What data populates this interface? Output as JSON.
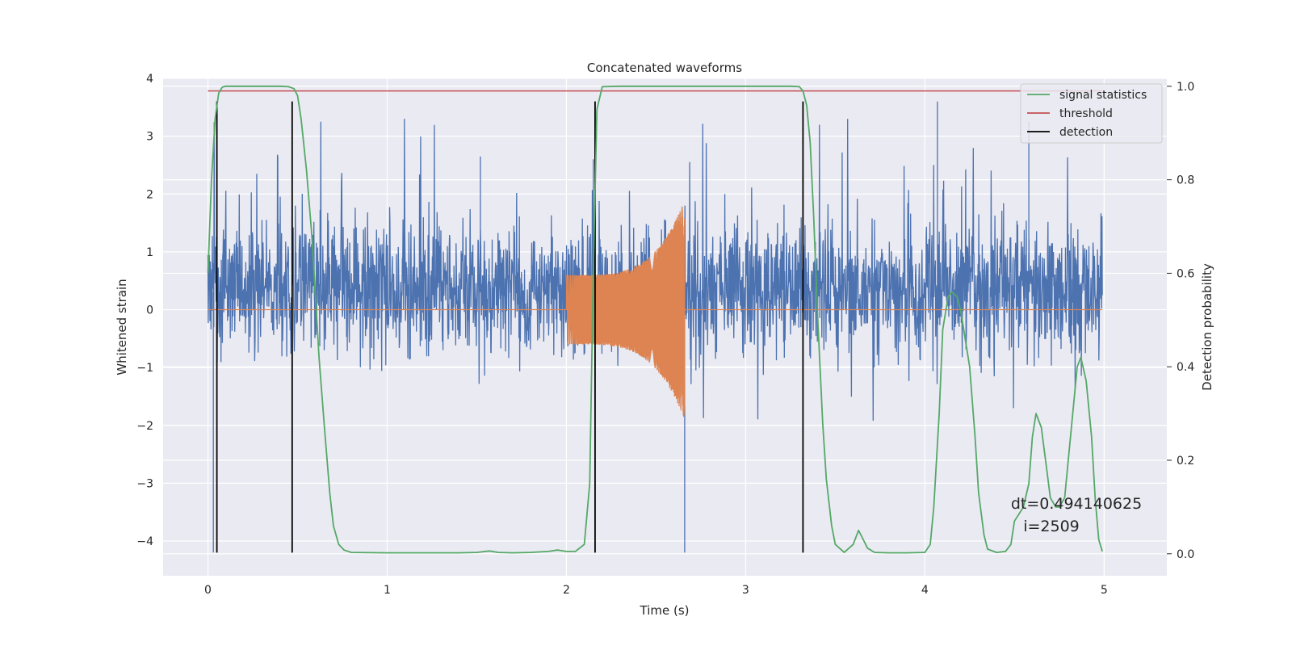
{
  "chart_data": {
    "type": "line",
    "title": "Concatenated waveforms",
    "xlabel": "Time (s)",
    "ylabel": "Whitened strain",
    "y2label": "Detection probability",
    "xlim": [
      -0.25,
      5.35
    ],
    "ylim": [
      -4.6,
      4.0
    ],
    "y2lim": [
      -0.047,
      1.017
    ],
    "x_ticks": [
      0,
      1,
      2,
      3,
      4,
      5
    ],
    "y_ticks": [
      4,
      3,
      2,
      1,
      0,
      -1,
      -2,
      -3,
      -4
    ],
    "y_tick_labels": [
      "4",
      "3",
      "2",
      "1",
      "0",
      "−1",
      "−2",
      "−3",
      "−4"
    ],
    "y2_ticks": [
      1.0,
      0.8,
      0.6,
      0.4,
      0.2,
      0.0
    ],
    "y2_tick_labels": [
      "1.0",
      "0.8",
      "0.6",
      "0.4",
      "0.2",
      "0.0"
    ],
    "grid": true,
    "legend_position": "top-right",
    "legend": [
      "signal statistics",
      "threshold",
      "detection"
    ],
    "colors": {
      "noise": "#4c72b0",
      "injection": "#dd8452",
      "signal_statistics": "#55a868",
      "threshold": "#c44e52",
      "detection": "#000000",
      "background": "#eaeaf2",
      "grid": "#ffffff"
    },
    "noise": {
      "x_range": [
        0.0,
        4.99
      ],
      "typical_range": [
        -1.0,
        1.7
      ],
      "max_peak": 3.6,
      "min_peak": -4.2
    },
    "injection": {
      "x_range": [
        2.0,
        2.66
      ],
      "start_amplitude": 0.6,
      "peak_amplitude": 1.9,
      "min_amplitude": -2.2
    },
    "series": [
      {
        "name": "signal statistics",
        "axis": "right",
        "x": [
          0.0,
          0.02,
          0.04,
          0.06,
          0.08,
          0.1,
          0.2,
          0.3,
          0.4,
          0.45,
          0.48,
          0.5,
          0.52,
          0.55,
          0.58,
          0.6,
          0.62,
          0.65,
          0.68,
          0.7,
          0.73,
          0.76,
          0.8,
          1.0,
          1.2,
          1.4,
          1.5,
          1.57,
          1.62,
          1.7,
          1.8,
          1.9,
          1.95,
          2.0,
          2.05,
          2.1,
          2.13,
          2.15,
          2.17,
          2.2,
          2.3,
          2.5,
          3.0,
          3.25,
          3.3,
          3.32,
          3.34,
          3.36,
          3.38,
          3.4,
          3.43,
          3.45,
          3.48,
          3.5,
          3.55,
          3.6,
          3.63,
          3.65,
          3.68,
          3.72,
          3.8,
          3.9,
          4.0,
          4.03,
          4.05,
          4.08,
          4.1,
          4.13,
          4.15,
          4.18,
          4.2,
          4.25,
          4.28,
          4.3,
          4.33,
          4.35,
          4.4,
          4.45,
          4.48,
          4.5,
          4.55,
          4.58,
          4.6,
          4.62,
          4.65,
          4.68,
          4.7,
          4.73,
          4.75,
          4.78,
          4.8,
          4.83,
          4.85,
          4.87,
          4.9,
          4.93,
          4.95,
          4.97,
          4.99
        ],
        "y": [
          0.6,
          0.8,
          0.93,
          0.985,
          0.998,
          1.0,
          1.0,
          1.0,
          1.0,
          0.999,
          0.995,
          0.98,
          0.93,
          0.82,
          0.68,
          0.55,
          0.42,
          0.27,
          0.13,
          0.06,
          0.02,
          0.008,
          0.003,
          0.002,
          0.002,
          0.002,
          0.003,
          0.006,
          0.003,
          0.002,
          0.003,
          0.005,
          0.008,
          0.005,
          0.005,
          0.02,
          0.15,
          0.6,
          0.95,
          0.999,
          1.0,
          1.0,
          1.0,
          1.0,
          0.999,
          0.99,
          0.96,
          0.88,
          0.72,
          0.52,
          0.28,
          0.16,
          0.06,
          0.02,
          0.003,
          0.02,
          0.05,
          0.035,
          0.012,
          0.003,
          0.002,
          0.002,
          0.003,
          0.02,
          0.1,
          0.3,
          0.48,
          0.55,
          0.56,
          0.55,
          0.52,
          0.4,
          0.25,
          0.13,
          0.04,
          0.01,
          0.003,
          0.005,
          0.02,
          0.07,
          0.1,
          0.15,
          0.25,
          0.3,
          0.27,
          0.18,
          0.12,
          0.1,
          0.1,
          0.12,
          0.2,
          0.32,
          0.4,
          0.42,
          0.37,
          0.25,
          0.12,
          0.03,
          0.005
        ]
      },
      {
        "name": "threshold",
        "axis": "right",
        "x": [
          0.0,
          4.99
        ],
        "y": [
          0.99,
          0.99
        ]
      },
      {
        "name": "detection",
        "axis": "left",
        "x": [
          0.05,
          0.47,
          2.16,
          3.32
        ],
        "y_range": [
          -4.2,
          3.6
        ]
      }
    ],
    "annotations": [
      "dt=0.494140625",
      "i=2509"
    ]
  }
}
